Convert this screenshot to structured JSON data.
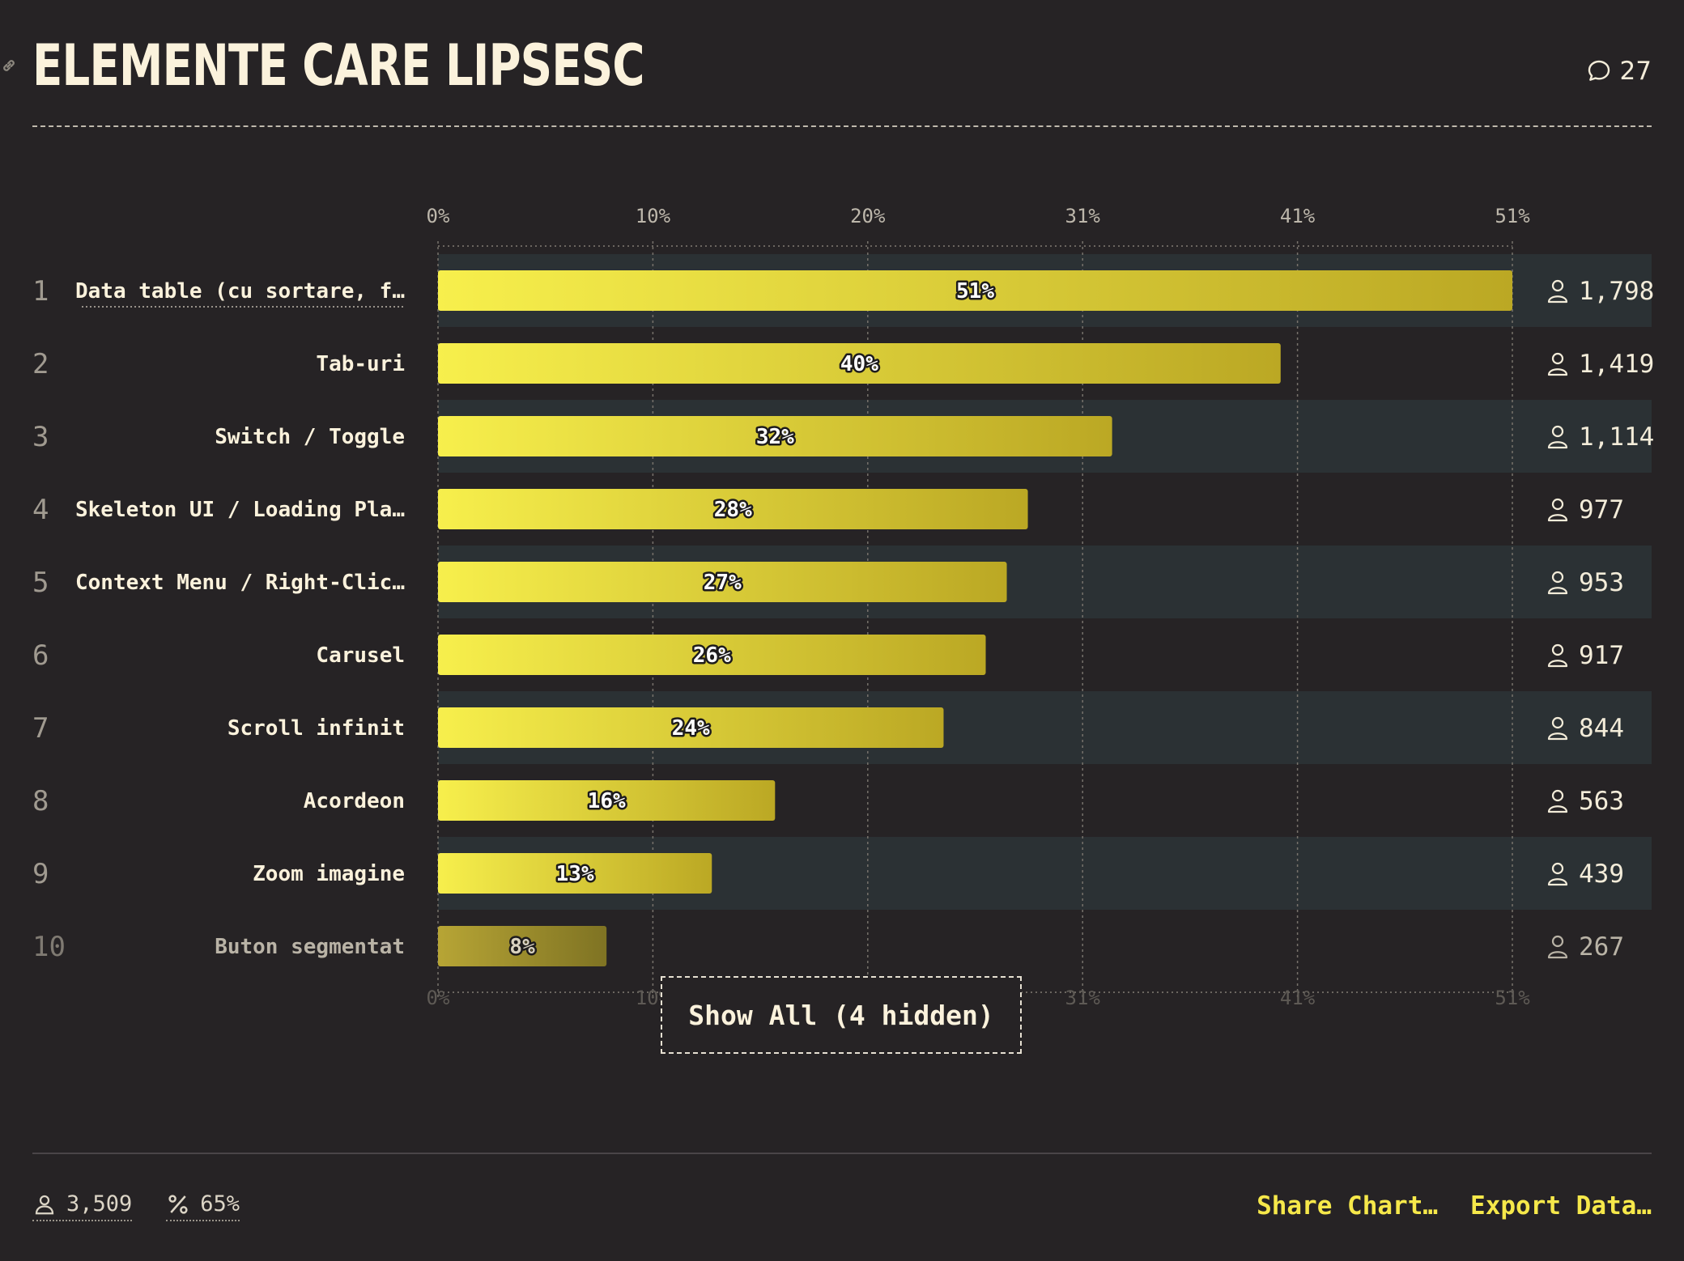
{
  "header": {
    "title": "ELEMENTE CARE LIPSESC",
    "comment_count": "27"
  },
  "chart_data": {
    "type": "bar",
    "orientation": "horizontal",
    "xlim": [
      0,
      51
    ],
    "tick_labels": [
      "0%",
      "10%",
      "20%",
      "31%",
      "41%",
      "51%"
    ],
    "tick_values": [
      0,
      10.2,
      20.4,
      30.6,
      40.8,
      51
    ],
    "categories": [
      "Data table (cu sortare, f…",
      "Tab-uri",
      "Switch / Toggle",
      "Skeleton UI / Loading Pla…",
      "Context Menu / Right-Clic…",
      "Carusel",
      "Scroll infinit",
      "Acordeon",
      "Zoom imagine",
      "Buton segmentat"
    ],
    "ranks": [
      "1",
      "2",
      "3",
      "4",
      "5",
      "6",
      "7",
      "8",
      "9",
      "10"
    ],
    "values": [
      51,
      40,
      32,
      28,
      27,
      26,
      24,
      16,
      13,
      8
    ],
    "value_labels": [
      "51%",
      "40%",
      "32%",
      "28%",
      "27%",
      "26%",
      "24%",
      "16%",
      "13%",
      "8%"
    ],
    "counts": [
      "1,798",
      "1,419",
      "1,114",
      "977",
      "953",
      "917",
      "844",
      "563",
      "439",
      "267"
    ],
    "grid": true,
    "colors": {
      "bar_start": "#f7ef4c",
      "bar_end": "#bba824",
      "row_alt": "#2b3134",
      "dim_bar_start": "#b7a535",
      "dim_bar_end": "#7f7323"
    }
  },
  "controls": {
    "show_all": "Show All (4 hidden)"
  },
  "footer": {
    "total_respondents": "3,509",
    "percent": "65%",
    "share": "Share Chart…",
    "export": "Export Data…"
  }
}
